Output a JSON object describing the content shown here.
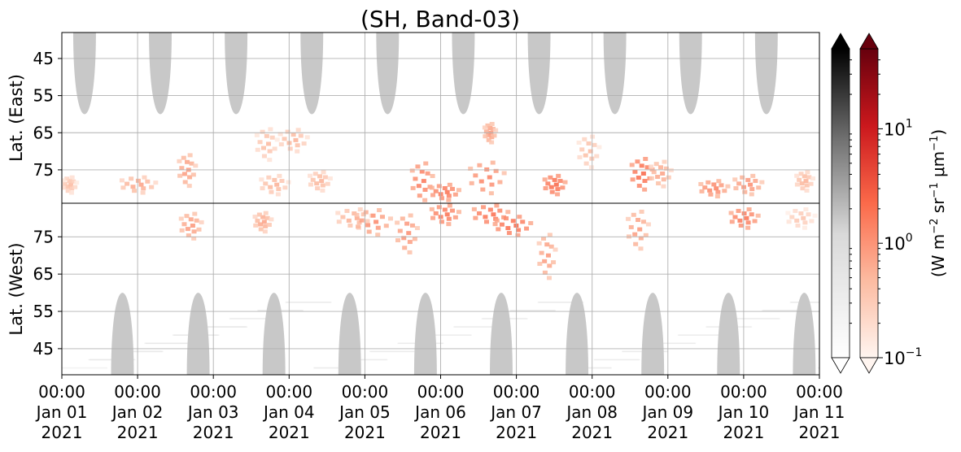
{
  "chart_data": {
    "type": "heatmap",
    "title": "(SH, Band-03)",
    "x": {
      "ticks": [
        {
          "time": "00:00",
          "date": "Jan 01",
          "year": "2021"
        },
        {
          "time": "00:00",
          "date": "Jan 02",
          "year": "2021"
        },
        {
          "time": "00:00",
          "date": "Jan 03",
          "year": "2021"
        },
        {
          "time": "00:00",
          "date": "Jan 04",
          "year": "2021"
        },
        {
          "time": "00:00",
          "date": "Jan 05",
          "year": "2021"
        },
        {
          "time": "00:00",
          "date": "Jan 06",
          "year": "2021"
        },
        {
          "time": "00:00",
          "date": "Jan 07",
          "year": "2021"
        },
        {
          "time": "00:00",
          "date": "Jan 08",
          "year": "2021"
        },
        {
          "time": "00:00",
          "date": "Jan 09",
          "year": "2021"
        },
        {
          "time": "00:00",
          "date": "Jan 10",
          "year": "2021"
        },
        {
          "time": "00:00",
          "date": "Jan 11",
          "year": "2021"
        }
      ],
      "range": [
        "2021-01-01 00:00",
        "2021-01-11 00:00"
      ]
    },
    "panels": [
      {
        "id": "east",
        "ylabel": "Lat. (East)",
        "yticks": [
          45,
          55,
          65,
          75
        ],
        "ylim": [
          38,
          84
        ],
        "direction": "increasing-down"
      },
      {
        "id": "west",
        "ylabel": "Lat. (West)",
        "yticks": [
          75,
          65,
          55,
          45
        ],
        "ylim": [
          84,
          38
        ],
        "direction": "decreasing-down"
      }
    ],
    "colorbars": [
      {
        "name": "grey",
        "cmap": "Greys",
        "scale": "log",
        "range": [
          0.1,
          50
        ],
        "extend": "both"
      },
      {
        "name": "red",
        "cmap": "Reds",
        "scale": "log",
        "range": [
          0.1,
          50
        ],
        "extend": "both",
        "ticks": [
          {
            "base": "10",
            "exp": "1"
          },
          {
            "base": "10",
            "exp": "0"
          },
          {
            "base": "10",
            "exp": "−1"
          }
        ],
        "label": {
          "pre": "(W m",
          "sup1": "−2",
          "mid": " sr",
          "sup2": "−1",
          "mu": " μm",
          "sup3": "−1",
          "post": ")"
        }
      }
    ],
    "grid": true,
    "colors": {
      "grey_fill": "#c8c8c8",
      "grey_high": "#000000",
      "red_high": "#67000d",
      "red_low": "#fff5f0",
      "grid": "#b0b0b0"
    },
    "series": [
      {
        "kind": "sunlit-mask",
        "panel": "east",
        "centers_day": [
          0.3,
          1.3,
          2.3,
          3.3,
          4.3,
          5.3,
          6.3,
          7.3,
          8.3,
          9.3
        ],
        "halfwidth_day": 0.15,
        "lat_edge": 60
      },
      {
        "kind": "sunlit-mask",
        "panel": "west",
        "centers_day": [
          0.8,
          1.8,
          2.8,
          3.8,
          4.8,
          5.8,
          6.8,
          7.8,
          8.8,
          9.8
        ],
        "halfwidth_day": 0.15,
        "lat_edge": 60
      },
      {
        "kind": "emission-blobs",
        "units": "W m-2 sr-1 um-1",
        "blobs": [
          {
            "panel": "east",
            "t": 0.1,
            "lat": 79,
            "dt": 0.1,
            "dl": 2.5,
            "v": 0.5
          },
          {
            "panel": "east",
            "t": 1.0,
            "lat": 79,
            "dt": 0.25,
            "dl": 2.5,
            "v": 0.8
          },
          {
            "panel": "east",
            "t": 1.65,
            "lat": 75,
            "dt": 0.12,
            "dl": 5,
            "v": 1.0
          },
          {
            "panel": "west",
            "t": 1.7,
            "lat": 78,
            "dt": 0.15,
            "dl": 4,
            "v": 1.0
          },
          {
            "panel": "east",
            "t": 2.8,
            "lat": 79,
            "dt": 0.2,
            "dl": 3,
            "v": 0.6
          },
          {
            "panel": "east",
            "t": 2.7,
            "lat": 68,
            "dt": 0.15,
            "dl": 5,
            "v": 0.5
          },
          {
            "panel": "west",
            "t": 2.65,
            "lat": 79,
            "dt": 0.12,
            "dl": 3,
            "v": 0.8
          },
          {
            "panel": "east",
            "t": 3.05,
            "lat": 67,
            "dt": 0.2,
            "dl": 3.5,
            "v": 0.6
          },
          {
            "panel": "east",
            "t": 3.4,
            "lat": 78,
            "dt": 0.15,
            "dl": 3,
            "v": 0.6
          },
          {
            "panel": "west",
            "t": 3.85,
            "lat": 80,
            "dt": 0.25,
            "dl": 3,
            "v": 0.7
          },
          {
            "panel": "west",
            "t": 4.1,
            "lat": 79,
            "dt": 0.25,
            "dl": 4,
            "v": 1.3
          },
          {
            "panel": "west",
            "t": 4.55,
            "lat": 76,
            "dt": 0.15,
            "dl": 6,
            "v": 1.2
          },
          {
            "panel": "east",
            "t": 4.75,
            "lat": 78,
            "dt": 0.15,
            "dl": 6,
            "v": 1.8
          },
          {
            "panel": "west",
            "t": 5.05,
            "lat": 81,
            "dt": 0.2,
            "dl": 3,
            "v": 2.0
          },
          {
            "panel": "east",
            "t": 5.05,
            "lat": 81,
            "dt": 0.2,
            "dl": 2.5,
            "v": 2.0
          },
          {
            "panel": "east",
            "t": 5.6,
            "lat": 77,
            "dt": 0.25,
            "dl": 5,
            "v": 1.5
          },
          {
            "panel": "west",
            "t": 5.65,
            "lat": 81,
            "dt": 0.25,
            "dl": 3,
            "v": 2.2
          },
          {
            "panel": "west",
            "t": 5.95,
            "lat": 78,
            "dt": 0.25,
            "dl": 3,
            "v": 2.5
          },
          {
            "panel": "east",
            "t": 5.65,
            "lat": 65,
            "dt": 0.08,
            "dl": 3,
            "v": 1.0
          },
          {
            "panel": "east",
            "t": 6.5,
            "lat": 79,
            "dt": 0.15,
            "dl": 3,
            "v": 2.5
          },
          {
            "panel": "west",
            "t": 6.4,
            "lat": 70,
            "dt": 0.12,
            "dl": 7,
            "v": 1.0
          },
          {
            "panel": "east",
            "t": 6.95,
            "lat": 70,
            "dt": 0.15,
            "dl": 5,
            "v": 0.5
          },
          {
            "panel": "east",
            "t": 7.65,
            "lat": 76,
            "dt": 0.15,
            "dl": 5,
            "v": 2.5
          },
          {
            "panel": "west",
            "t": 7.6,
            "lat": 77,
            "dt": 0.15,
            "dl": 6,
            "v": 1.0
          },
          {
            "panel": "east",
            "t": 7.9,
            "lat": 76,
            "dt": 0.15,
            "dl": 4,
            "v": 0.8
          },
          {
            "panel": "east",
            "t": 8.6,
            "lat": 80,
            "dt": 0.2,
            "dl": 2.5,
            "v": 1.5
          },
          {
            "panel": "east",
            "t": 9.05,
            "lat": 79,
            "dt": 0.2,
            "dl": 3,
            "v": 1.2
          },
          {
            "panel": "west",
            "t": 9.0,
            "lat": 80,
            "dt": 0.2,
            "dl": 3,
            "v": 2.0
          },
          {
            "panel": "east",
            "t": 9.8,
            "lat": 78,
            "dt": 0.12,
            "dl": 3,
            "v": 0.6
          },
          {
            "panel": "west",
            "t": 9.75,
            "lat": 80,
            "dt": 0.2,
            "dl": 3,
            "v": 0.4
          }
        ]
      }
    ]
  }
}
